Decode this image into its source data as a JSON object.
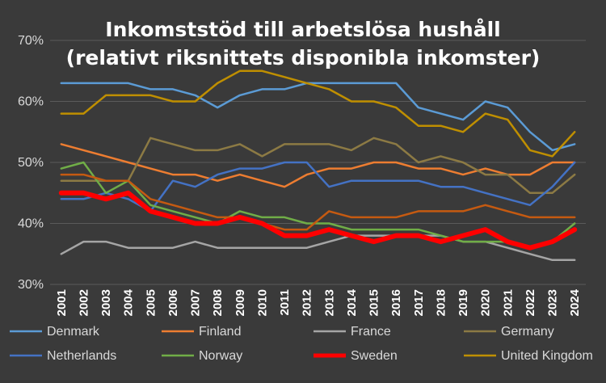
{
  "chart_data": {
    "type": "line",
    "title_lines": [
      "Inkomststöd till arbetslösa hushåll",
      "(relativt riksnittets disponibla inkomster)"
    ],
    "xlabel": "",
    "ylabel": "",
    "ylim": [
      30,
      70
    ],
    "yticks": [
      "30%",
      "40%",
      "50%",
      "60%",
      "70%"
    ],
    "ytick_values": [
      30,
      40,
      50,
      60,
      70
    ],
    "grid": true,
    "legend_position": "bottom",
    "x": [
      "2001",
      "2002",
      "2003",
      "2004",
      "2005",
      "2006",
      "2007",
      "2008",
      "2009",
      "2010",
      "2011",
      "2012",
      "2013",
      "2014",
      "2015",
      "2016",
      "2017",
      "2018",
      "2019",
      "2020",
      "2021",
      "2022",
      "2023",
      "2024"
    ],
    "series": [
      {
        "name": "Denmark",
        "color": "#5b9bd5",
        "width": 2.5,
        "values": [
          63,
          63,
          63,
          63,
          62,
          62,
          61,
          59,
          61,
          62,
          62,
          63,
          63,
          63,
          63,
          63,
          59,
          58,
          57,
          60,
          59,
          55,
          52,
          53
        ]
      },
      {
        "name": "Finland",
        "color": "#ed7d31",
        "width": 2.5,
        "values": [
          53,
          52,
          51,
          50,
          49,
          48,
          48,
          47,
          48,
          47,
          46,
          48,
          49,
          49,
          50,
          50,
          49,
          49,
          48,
          49,
          48,
          48,
          50,
          50
        ]
      },
      {
        "name": "France",
        "color": "#a5a5a5",
        "width": 2.5,
        "values": [
          35,
          37,
          37,
          36,
          36,
          36,
          37,
          36,
          36,
          36,
          36,
          36,
          37,
          38,
          38,
          38,
          38,
          38,
          37,
          37,
          36,
          35,
          34,
          34
        ]
      },
      {
        "name": "Germany",
        "color": "#8c7a44",
        "width": 2.5,
        "values": [
          47,
          47,
          47,
          47,
          54,
          53,
          52,
          52,
          53,
          51,
          53,
          53,
          53,
          52,
          54,
          53,
          50,
          51,
          50,
          48,
          48,
          45,
          45,
          48
        ]
      },
      {
        "name": "Netherlands",
        "color": "#4472c4",
        "width": 2.5,
        "values": [
          44,
          44,
          45,
          44,
          42,
          47,
          46,
          48,
          49,
          49,
          50,
          50,
          46,
          47,
          47,
          47,
          47,
          46,
          46,
          45,
          44,
          43,
          46,
          50
        ]
      },
      {
        "name": "Norway",
        "color": "#70ad47",
        "width": 2.5,
        "values": [
          49,
          50,
          45,
          47,
          43,
          42,
          41,
          40,
          42,
          41,
          41,
          40,
          40,
          39,
          39,
          39,
          39,
          38,
          37,
          37,
          37,
          36,
          37,
          40
        ]
      },
      {
        "name": "Sweden",
        "color": "#ff0000",
        "width": 6,
        "values": [
          45,
          45,
          44,
          45,
          42,
          41,
          40,
          40,
          41,
          40,
          38,
          38,
          39,
          38,
          37,
          38,
          38,
          37,
          38,
          39,
          37,
          36,
          37,
          39
        ]
      },
      {
        "name": "United Kingdom",
        "color": "#bf8f00",
        "width": 2.5,
        "values": [
          58,
          58,
          61,
          61,
          61,
          60,
          60,
          63,
          65,
          65,
          64,
          63,
          62,
          60,
          60,
          59,
          56,
          56,
          55,
          58,
          57,
          52,
          51,
          55
        ]
      },
      {
        "name": "",
        "color": "#c55a11",
        "width": 2.5,
        "legend": false,
        "values": [
          48,
          48,
          47,
          47,
          44,
          43,
          42,
          41,
          41,
          40,
          39,
          39,
          42,
          41,
          41,
          41,
          42,
          42,
          42,
          43,
          42,
          41,
          41,
          41
        ]
      }
    ]
  }
}
